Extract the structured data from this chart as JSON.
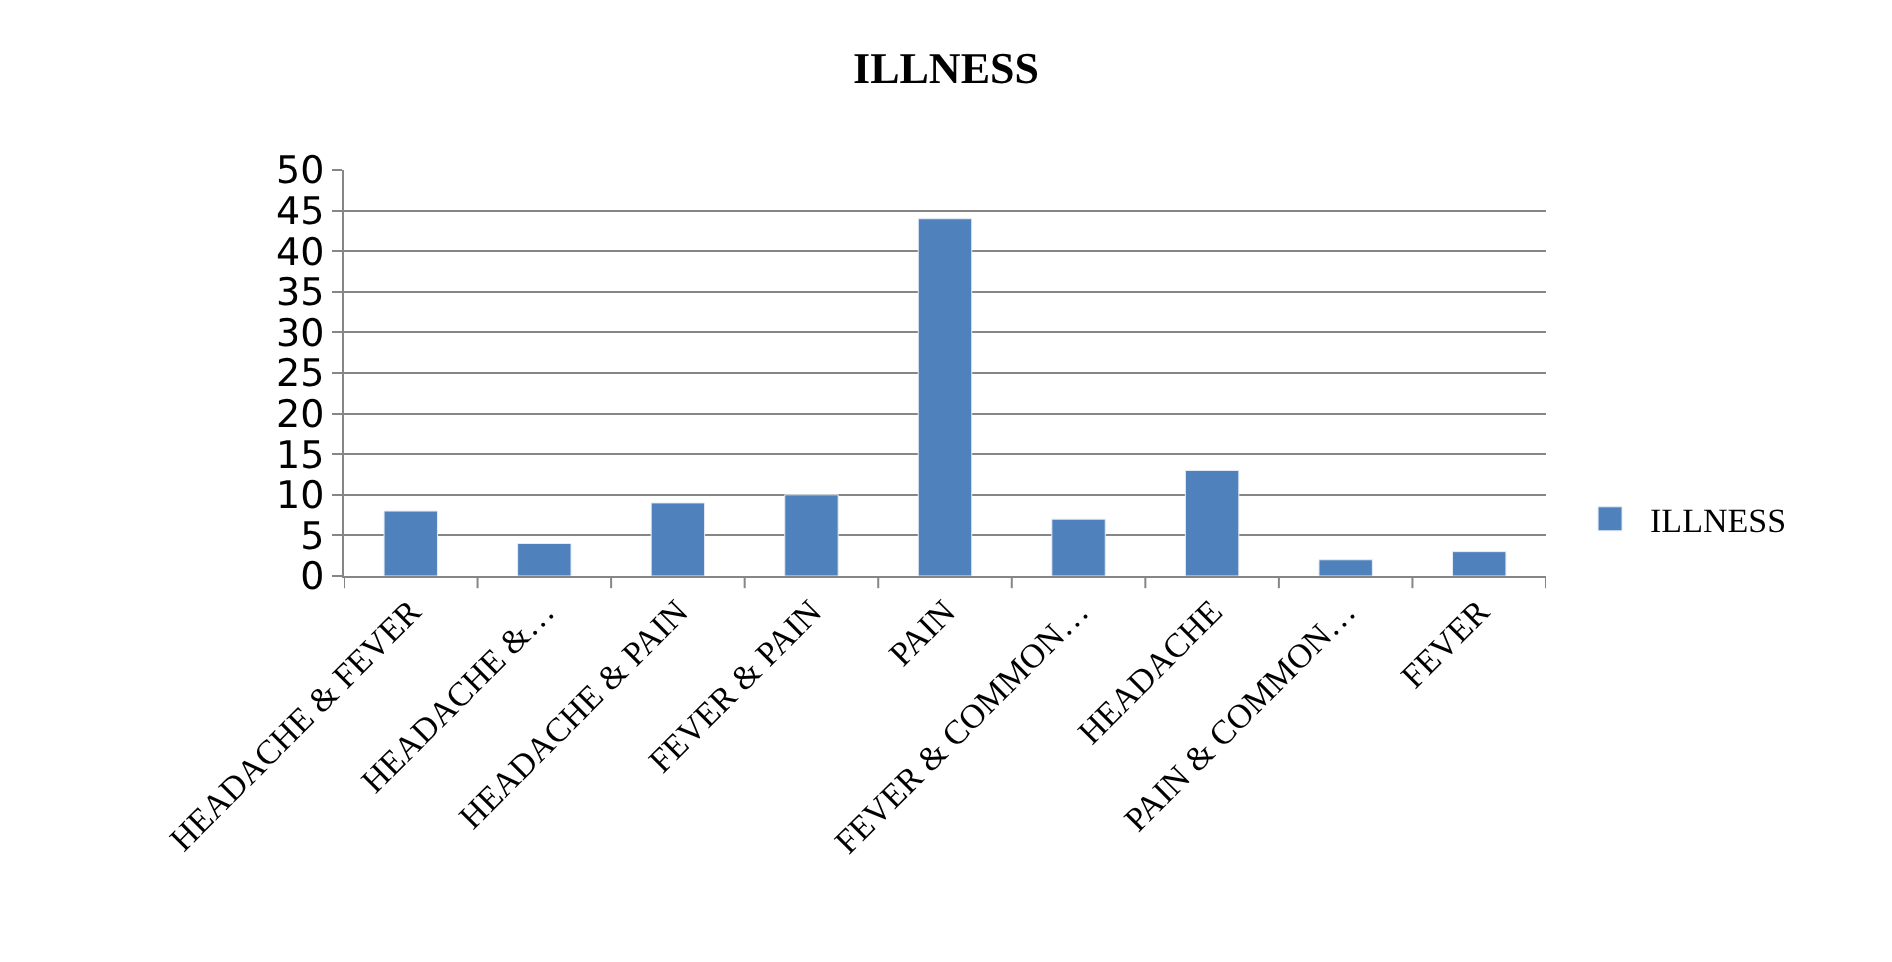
{
  "chart_data": {
    "type": "bar",
    "title": "ILLNESS",
    "categories": [
      "HEADACHE & FEVER",
      "HEADACHE &…",
      "HEADACHE & PAIN",
      "FEVER & PAIN",
      "PAIN",
      "FEVER & COMMON…",
      "HEADACHE",
      "PAIN & COMMON…",
      "FEVER"
    ],
    "series": [
      {
        "name": "ILLNESS",
        "color": "#4f81bd",
        "values": [
          8,
          4,
          9,
          10,
          44,
          7,
          13,
          2,
          3
        ]
      }
    ],
    "ylim": [
      0,
      50
    ],
    "yticks": [
      0,
      5,
      10,
      15,
      20,
      25,
      30,
      35,
      40,
      45,
      50
    ],
    "grid": "y",
    "legend": "right"
  }
}
